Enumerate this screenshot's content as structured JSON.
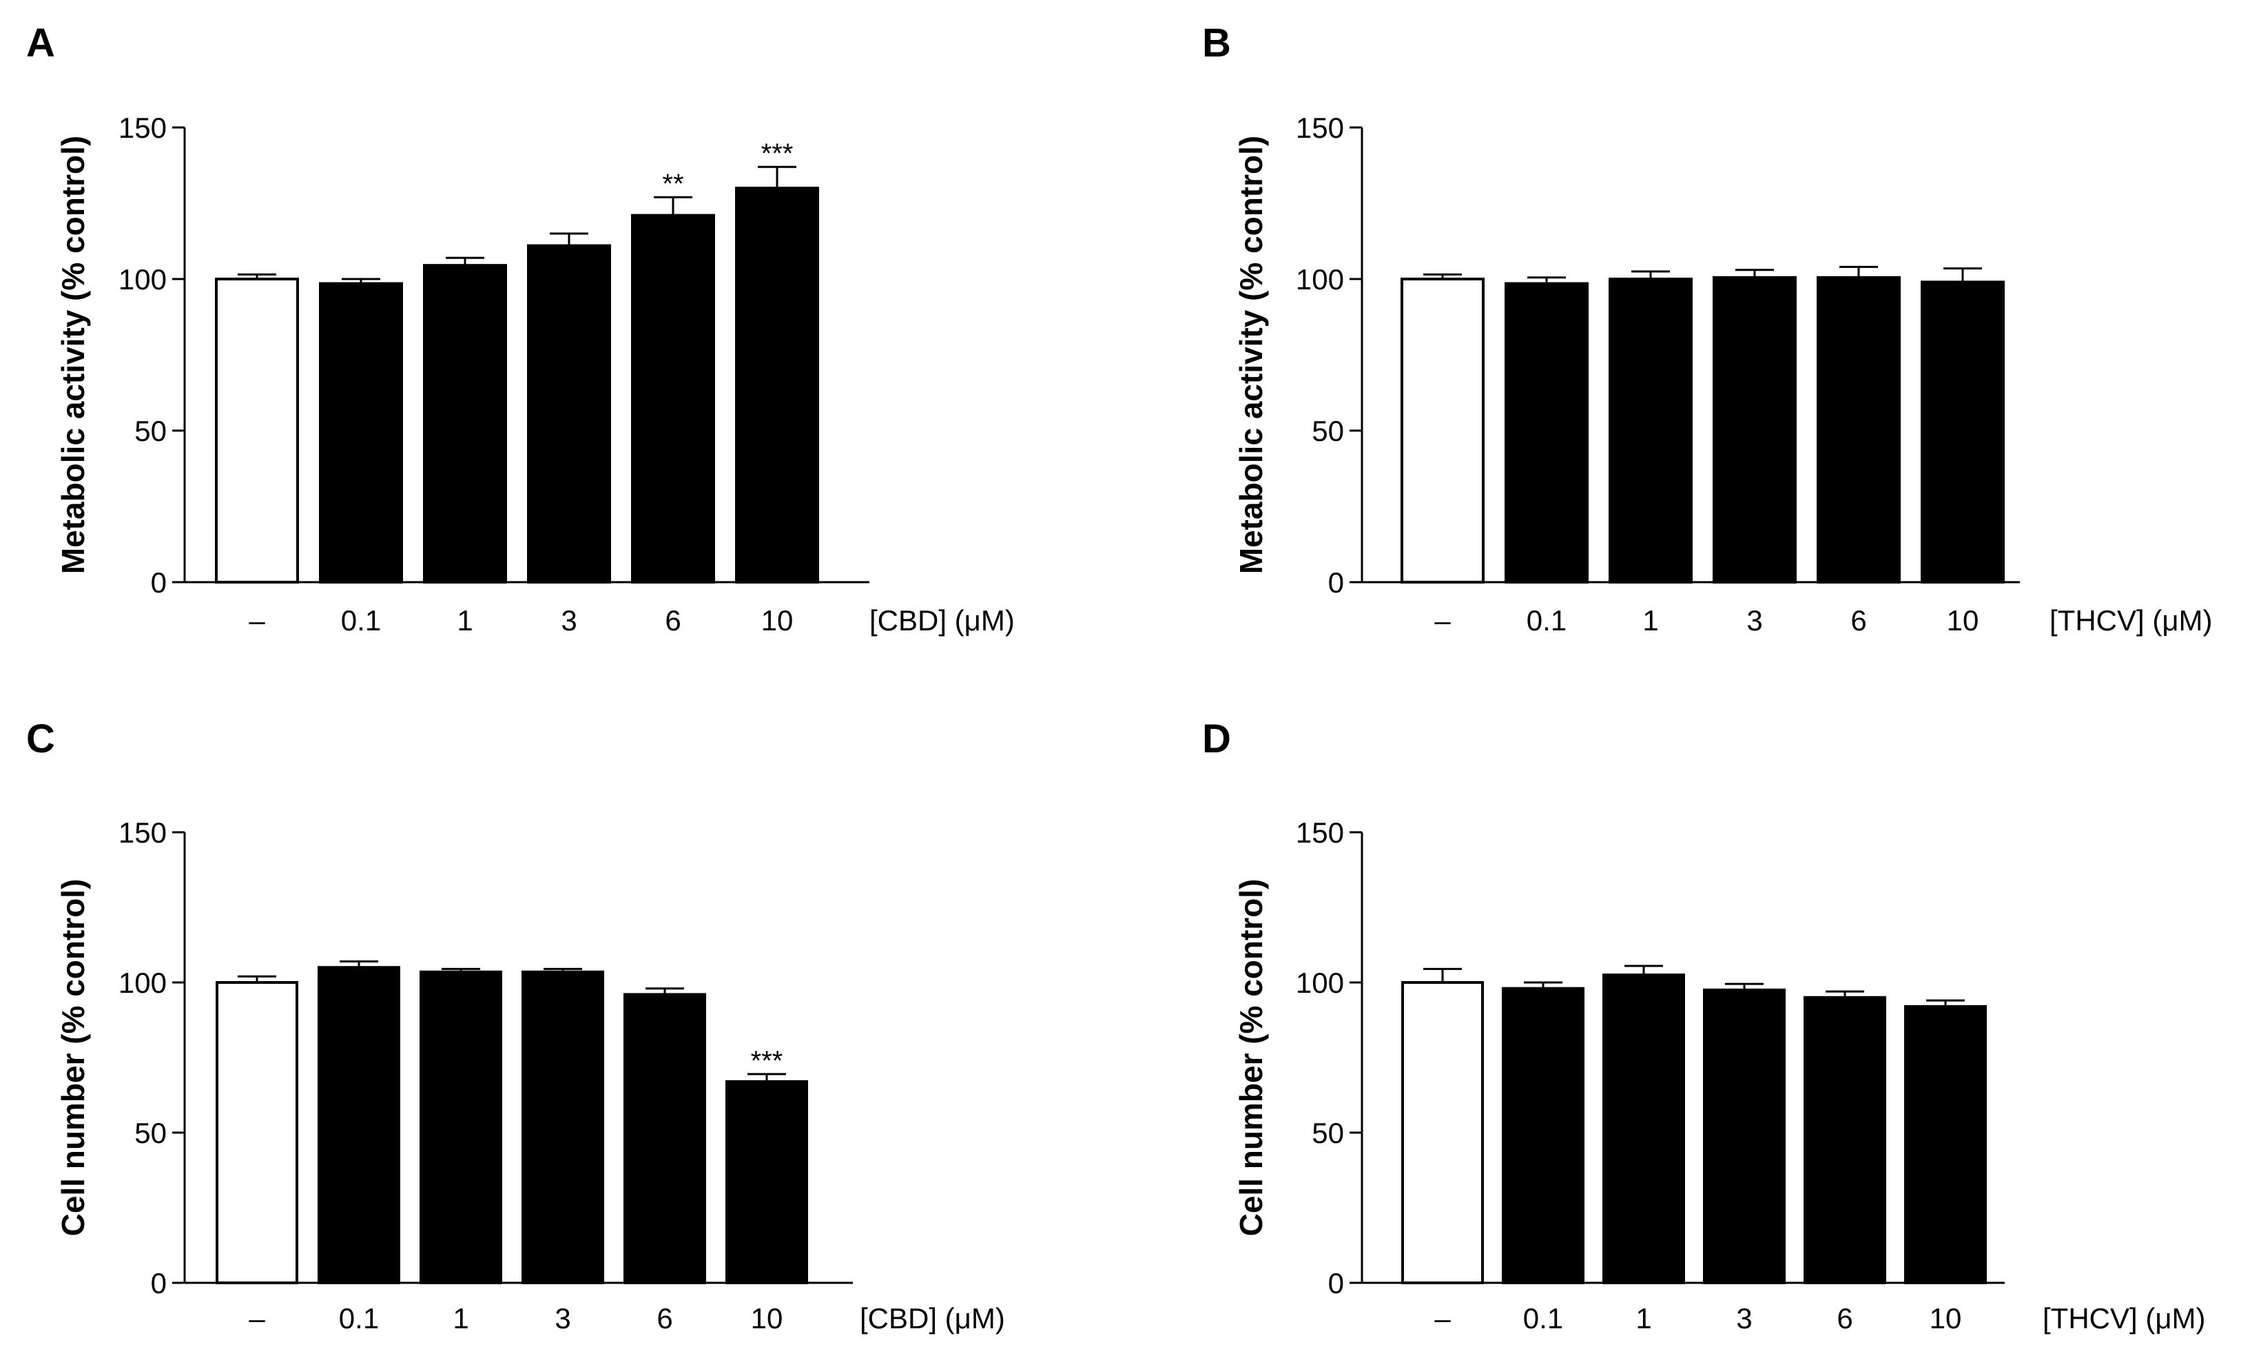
{
  "chart_data": [
    {
      "panel": "A",
      "type": "bar",
      "categories": [
        "–",
        "0.1",
        "1",
        "3",
        "6",
        "10"
      ],
      "values": [
        100,
        98.5,
        104.5,
        111,
        121,
        130
      ],
      "errors": [
        1.5,
        1.5,
        2.5,
        4,
        6,
        7
      ],
      "significance": [
        "",
        "",
        "",
        "",
        "**",
        "***"
      ],
      "bar_colors": [
        "#ffffff",
        "#000000",
        "#000000",
        "#000000",
        "#000000",
        "#000000"
      ],
      "xlabel": "[CBD] (μM)",
      "ylabel": "Metabolic activity (% control)",
      "ylim": [
        0,
        150
      ],
      "yticks": [
        0,
        50,
        100,
        150
      ]
    },
    {
      "panel": "B",
      "type": "bar",
      "categories": [
        "–",
        "0.1",
        "1",
        "3",
        "6",
        "10"
      ],
      "values": [
        100,
        98.5,
        100,
        100.5,
        100.5,
        99
      ],
      "errors": [
        1.5,
        2,
        2.5,
        2.5,
        3.5,
        4.5
      ],
      "significance": [
        "",
        "",
        "",
        "",
        "",
        ""
      ],
      "bar_colors": [
        "#ffffff",
        "#000000",
        "#000000",
        "#000000",
        "#000000",
        "#000000"
      ],
      "xlabel": "[THCV] (μM)",
      "ylabel": "Metabolic activity (% control)",
      "ylim": [
        0,
        150
      ],
      "yticks": [
        0,
        50,
        100,
        150
      ]
    },
    {
      "panel": "C",
      "type": "bar",
      "categories": [
        "–",
        "0.1",
        "1",
        "3",
        "6",
        "10"
      ],
      "values": [
        100,
        105,
        103.5,
        103.5,
        96,
        67
      ],
      "errors": [
        2,
        2,
        1,
        1,
        2,
        2.5
      ],
      "significance": [
        "",
        "",
        "",
        "",
        "",
        "***"
      ],
      "bar_colors": [
        "#ffffff",
        "#000000",
        "#000000",
        "#000000",
        "#000000",
        "#000000"
      ],
      "xlabel": "[CBD] (μM)",
      "ylabel": "Cell number (% control)",
      "ylim": [
        0,
        150
      ],
      "yticks": [
        0,
        50,
        100,
        150
      ]
    },
    {
      "panel": "D",
      "type": "bar",
      "categories": [
        "–",
        "0.1",
        "1",
        "3",
        "6",
        "10"
      ],
      "values": [
        100,
        98,
        102.5,
        97.5,
        95,
        92
      ],
      "errors": [
        4.5,
        2,
        3,
        2,
        2,
        2
      ],
      "significance": [
        "",
        "",
        "",
        "",
        "",
        ""
      ],
      "bar_colors": [
        "#ffffff",
        "#000000",
        "#000000",
        "#000000",
        "#000000",
        "#000000"
      ],
      "xlabel": "[THCV] (μM)",
      "ylabel": "Cell number (% control)",
      "ylim": [
        0,
        150
      ],
      "yticks": [
        0,
        50,
        100,
        150
      ]
    }
  ]
}
